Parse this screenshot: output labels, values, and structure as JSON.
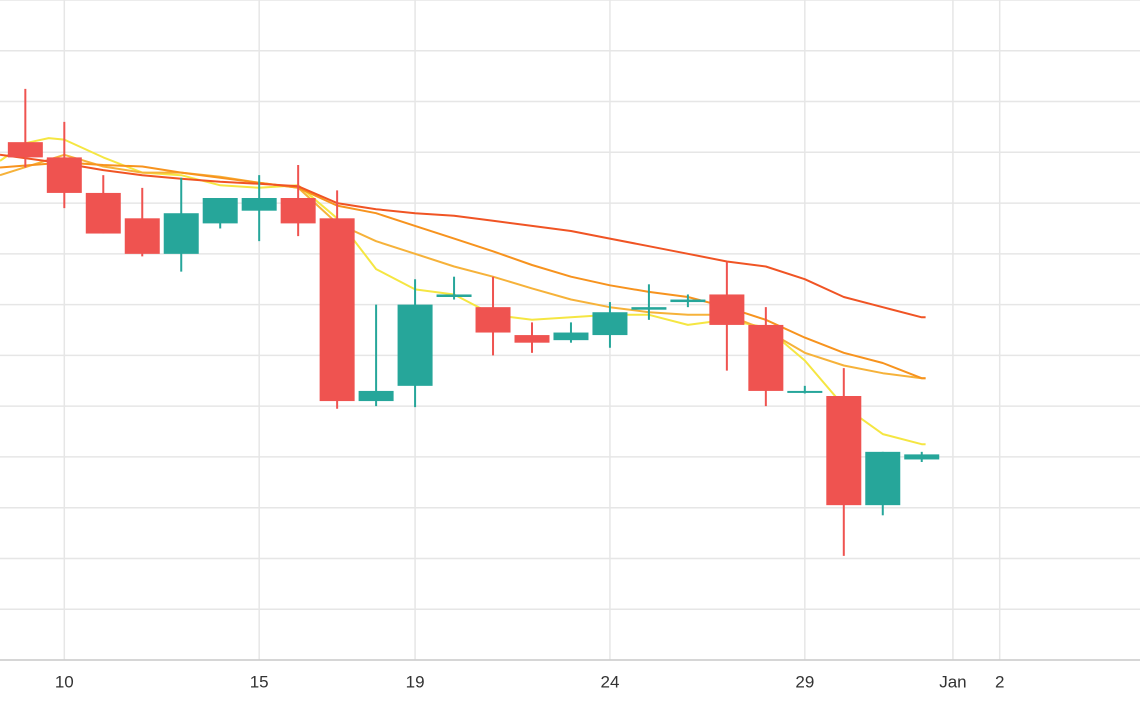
{
  "chart_data": {
    "type": "candlestick",
    "title": "",
    "xlabel": "",
    "ylabel": "",
    "grid": true,
    "x_tick_labels": [
      {
        "day": 10,
        "label": "10"
      },
      {
        "day": 15,
        "label": "15"
      },
      {
        "day": 19,
        "label": "19"
      },
      {
        "day": 24,
        "label": "24"
      },
      {
        "day": 29,
        "label": "29"
      },
      {
        "day": 32.8,
        "label": "Jan"
      },
      {
        "day": 34,
        "label": "2"
      }
    ],
    "xlim": [
      8.35,
      37.6
    ],
    "ylim": [
      0,
      13
    ],
    "candles": [
      {
        "day": 9,
        "open": 10.2,
        "high": 11.25,
        "low": 9.7,
        "close": 9.9
      },
      {
        "day": 10,
        "open": 9.9,
        "high": 10.6,
        "low": 8.9,
        "close": 9.2
      },
      {
        "day": 11,
        "open": 9.2,
        "high": 9.55,
        "low": 8.4,
        "close": 8.4
      },
      {
        "day": 12,
        "open": 8.7,
        "high": 9.3,
        "low": 7.95,
        "close": 8.0
      },
      {
        "day": 13,
        "open": 8.0,
        "high": 9.5,
        "low": 7.65,
        "close": 8.8
      },
      {
        "day": 14,
        "open": 8.6,
        "high": 9.05,
        "low": 8.5,
        "close": 9.1
      },
      {
        "day": 15,
        "open": 8.85,
        "high": 9.55,
        "low": 8.25,
        "close": 9.1
      },
      {
        "day": 16,
        "open": 9.1,
        "high": 9.75,
        "low": 8.35,
        "close": 8.6
      },
      {
        "day": 17,
        "open": 8.7,
        "high": 9.25,
        "low": 4.95,
        "close": 5.1
      },
      {
        "day": 18,
        "open": 5.1,
        "high": 7.0,
        "low": 5.0,
        "close": 5.3
      },
      {
        "day": 19,
        "open": 5.4,
        "high": 7.5,
        "low": 4.98,
        "close": 7.0
      },
      {
        "day": 20,
        "open": 7.15,
        "high": 7.55,
        "low": 7.1,
        "close": 7.2
      },
      {
        "day": 21,
        "open": 6.95,
        "high": 7.55,
        "low": 6.0,
        "close": 6.45
      },
      {
        "day": 22,
        "open": 6.4,
        "high": 6.65,
        "low": 6.05,
        "close": 6.25
      },
      {
        "day": 23,
        "open": 6.3,
        "high": 6.65,
        "low": 6.25,
        "close": 6.45
      },
      {
        "day": 24,
        "open": 6.4,
        "high": 7.05,
        "low": 6.15,
        "close": 6.85
      },
      {
        "day": 25,
        "open": 6.9,
        "high": 7.4,
        "low": 6.7,
        "close": 6.95
      },
      {
        "day": 26,
        "open": 7.05,
        "high": 7.2,
        "low": 6.95,
        "close": 7.1
      },
      {
        "day": 27,
        "open": 7.2,
        "high": 7.85,
        "low": 5.7,
        "close": 6.6
      },
      {
        "day": 28,
        "open": 6.6,
        "high": 6.95,
        "low": 5.0,
        "close": 5.3
      },
      {
        "day": 29,
        "open": 5.3,
        "high": 5.4,
        "low": 5.25,
        "close": 5.3
      },
      {
        "day": 30,
        "open": 5.2,
        "high": 5.75,
        "low": 2.05,
        "close": 3.05
      },
      {
        "day": 31,
        "open": 3.05,
        "high": 4.1,
        "low": 2.85,
        "close": 4.1
      },
      {
        "day": 32,
        "open": 3.95,
        "high": 4.1,
        "low": 3.9,
        "close": 4.05
      }
    ],
    "series": [
      {
        "color": "#f5e642",
        "values": [
          [
            8.35,
            9.83
          ],
          [
            9,
            10.18
          ],
          [
            9.6,
            10.28
          ],
          [
            10,
            10.25
          ],
          [
            11,
            9.9
          ],
          [
            12,
            9.6
          ],
          [
            13,
            9.55
          ],
          [
            14,
            9.35
          ],
          [
            15,
            9.3
          ],
          [
            16,
            9.35
          ],
          [
            17,
            8.7
          ],
          [
            18,
            7.7
          ],
          [
            19,
            7.3
          ],
          [
            20,
            7.2
          ],
          [
            21,
            6.8
          ],
          [
            22,
            6.7
          ],
          [
            23,
            6.75
          ],
          [
            24,
            6.8
          ],
          [
            25,
            6.8
          ],
          [
            26,
            6.6
          ],
          [
            27,
            6.7
          ],
          [
            28,
            6.55
          ],
          [
            29,
            5.9
          ],
          [
            30,
            5.0
          ],
          [
            31,
            4.45
          ],
          [
            32,
            4.25
          ],
          [
            32.1,
            4.25
          ]
        ]
      },
      {
        "color": "#f6b23a",
        "values": [
          [
            8.35,
            9.55
          ],
          [
            10,
            9.95
          ],
          [
            11,
            9.72
          ],
          [
            12,
            9.6
          ],
          [
            13,
            9.6
          ],
          [
            14,
            9.52
          ],
          [
            15,
            9.4
          ],
          [
            16,
            9.3
          ],
          [
            17,
            8.6
          ],
          [
            18,
            8.25
          ],
          [
            19,
            8.0
          ],
          [
            20,
            7.75
          ],
          [
            21,
            7.55
          ],
          [
            22,
            7.32
          ],
          [
            23,
            7.1
          ],
          [
            24,
            6.95
          ],
          [
            25,
            6.85
          ],
          [
            26,
            6.8
          ],
          [
            27,
            6.8
          ],
          [
            28,
            6.5
          ],
          [
            29,
            6.05
          ],
          [
            30,
            5.8
          ],
          [
            31,
            5.65
          ],
          [
            32,
            5.55
          ],
          [
            32.1,
            5.55
          ]
        ]
      },
      {
        "color": "#f7931e",
        "values": [
          [
            8.35,
            9.7
          ],
          [
            10,
            9.8
          ],
          [
            11,
            9.75
          ],
          [
            12,
            9.72
          ],
          [
            13,
            9.6
          ],
          [
            14,
            9.5
          ],
          [
            15,
            9.4
          ],
          [
            16,
            9.3
          ],
          [
            17,
            8.95
          ],
          [
            18,
            8.8
          ],
          [
            19,
            8.55
          ],
          [
            20,
            8.3
          ],
          [
            21,
            8.05
          ],
          [
            22,
            7.78
          ],
          [
            23,
            7.55
          ],
          [
            24,
            7.38
          ],
          [
            25,
            7.25
          ],
          [
            26,
            7.15
          ],
          [
            27,
            6.95
          ],
          [
            28,
            6.7
          ],
          [
            29,
            6.35
          ],
          [
            30,
            6.05
          ],
          [
            31,
            5.85
          ],
          [
            32,
            5.55
          ],
          [
            32.1,
            5.55
          ]
        ]
      },
      {
        "color": "#f05424",
        "values": [
          [
            8.35,
            9.95
          ],
          [
            10,
            9.78
          ],
          [
            11,
            9.65
          ],
          [
            12,
            9.55
          ],
          [
            13,
            9.48
          ],
          [
            14,
            9.42
          ],
          [
            15,
            9.38
          ],
          [
            16,
            9.33
          ],
          [
            17,
            9.0
          ],
          [
            18,
            8.88
          ],
          [
            19,
            8.8
          ],
          [
            20,
            8.75
          ],
          [
            21,
            8.65
          ],
          [
            22,
            8.55
          ],
          [
            23,
            8.45
          ],
          [
            24,
            8.3
          ],
          [
            25,
            8.15
          ],
          [
            26,
            8.0
          ],
          [
            27,
            7.85
          ],
          [
            28,
            7.75
          ],
          [
            29,
            7.5
          ],
          [
            30,
            7.15
          ],
          [
            31,
            6.95
          ],
          [
            32,
            6.75
          ],
          [
            32.1,
            6.75
          ]
        ]
      }
    ],
    "colors": {
      "up": "#26a69a",
      "down": "#ef5350",
      "grid": "#e6e6e6",
      "axis": "#cccccc",
      "text": "#333333"
    }
  }
}
